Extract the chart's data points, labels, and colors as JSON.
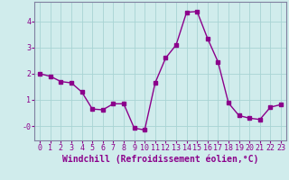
{
  "x": [
    0,
    1,
    2,
    3,
    4,
    5,
    6,
    7,
    8,
    9,
    10,
    11,
    12,
    13,
    14,
    15,
    16,
    17,
    18,
    19,
    20,
    21,
    22,
    23
  ],
  "y": [
    2.0,
    1.9,
    1.7,
    1.65,
    1.3,
    0.65,
    0.62,
    0.85,
    0.85,
    -0.08,
    -0.15,
    1.65,
    2.6,
    3.1,
    4.35,
    4.38,
    3.35,
    2.45,
    0.88,
    0.4,
    0.3,
    0.25,
    0.72,
    0.82
  ],
  "line_color": "#8B008B",
  "marker": "s",
  "marker_size": 2.5,
  "bg_color": "#d0ecec",
  "grid_color": "#a8d4d4",
  "xlabel": "Windchill (Refroidissement éolien,°C)",
  "xlabel_fontsize": 7,
  "tick_fontsize": 6,
  "ylim": [
    -0.55,
    4.75
  ],
  "xlim": [
    -0.5,
    23.5
  ],
  "yticks": [
    0,
    1,
    2,
    3,
    4
  ],
  "ytick_labels": [
    "-0",
    "1",
    "2",
    "3",
    "4"
  ],
  "xticks": [
    0,
    1,
    2,
    3,
    4,
    5,
    6,
    7,
    8,
    9,
    10,
    11,
    12,
    13,
    14,
    15,
    16,
    17,
    18,
    19,
    20,
    21,
    22,
    23
  ]
}
